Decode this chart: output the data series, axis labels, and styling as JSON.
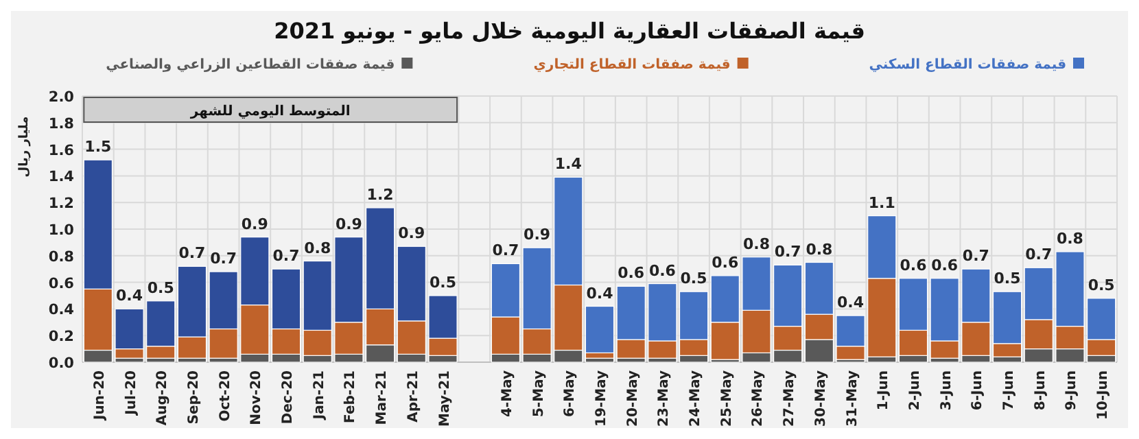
{
  "chart_data": {
    "type": "bar",
    "stacked": true,
    "title": "قيمة الصفقات العقارية اليومية خلال مايو - يونيو 2021",
    "ylabel": "مليار ريال",
    "annotations": [
      "المتوسط اليومي للشهر"
    ],
    "categories": [
      "Jun-20",
      "Jul-20",
      "Aug-20",
      "Sep-20",
      "Oct-20",
      "Nov-20",
      "Dec-20",
      "Jan-21",
      "Feb-21",
      "Mar-21",
      "Apr-21",
      "May-21",
      null,
      "4-May",
      "5-May",
      "6-May",
      "19-May",
      "20-May",
      "23-May",
      "24-May",
      "25-May",
      "26-May",
      "27-May",
      "30-May",
      "31-May",
      "1-Jun",
      "2-Jun",
      "3-Jun",
      "6-Jun",
      "7-Jun",
      "8-Jun",
      "9-Jun",
      "10-Jun"
    ],
    "series": [
      {
        "name": "قيمة صفقات القطاعين الزراعي والصناعي",
        "color": "#595959",
        "values": [
          0.09,
          0.03,
          0.03,
          0.03,
          0.03,
          0.06,
          0.06,
          0.05,
          0.06,
          0.13,
          0.06,
          0.05,
          null,
          0.06,
          0.06,
          0.09,
          0.03,
          0.03,
          0.03,
          0.05,
          0.02,
          0.07,
          0.09,
          0.17,
          0.02,
          0.04,
          0.05,
          0.03,
          0.05,
          0.04,
          0.1,
          0.1,
          0.05
        ]
      },
      {
        "name": "قيمة صفقات القطاع التجاري",
        "color": "#c0622a",
        "values": [
          0.46,
          0.07,
          0.09,
          0.16,
          0.22,
          0.37,
          0.19,
          0.19,
          0.24,
          0.27,
          0.25,
          0.13,
          null,
          0.28,
          0.19,
          0.49,
          0.04,
          0.14,
          0.13,
          0.12,
          0.28,
          0.32,
          0.18,
          0.19,
          0.1,
          0.59,
          0.19,
          0.13,
          0.25,
          0.1,
          0.22,
          0.17,
          0.12
        ]
      },
      {
        "name": "قيمة صفقات القطاع السكني",
        "color": "#4472c4",
        "colors": [
          "#2e4d9a",
          "#2e4d9a",
          "#2e4d9a",
          "#2e4d9a",
          "#2e4d9a",
          "#2e4d9a",
          "#2e4d9a",
          "#2e4d9a",
          "#2e4d9a",
          "#2e4d9a",
          "#2e4d9a",
          "#2e4d9a",
          null,
          "#4472c4",
          "#4472c4",
          "#4472c4",
          "#4472c4",
          "#4472c4",
          "#4472c4",
          "#4472c4",
          "#4472c4",
          "#4472c4",
          "#4472c4",
          "#4472c4",
          "#4472c4",
          "#4472c4",
          "#4472c4",
          "#4472c4",
          "#4472c4",
          "#4472c4",
          "#4472c4",
          "#4472c4",
          "#4472c4"
        ],
        "values": [
          0.97,
          0.3,
          0.34,
          0.53,
          0.43,
          0.51,
          0.45,
          0.52,
          0.64,
          0.76,
          0.56,
          0.32,
          null,
          0.4,
          0.61,
          0.81,
          0.35,
          0.4,
          0.43,
          0.36,
          0.35,
          0.4,
          0.46,
          0.39,
          0.23,
          0.47,
          0.39,
          0.47,
          0.4,
          0.39,
          0.39,
          0.56,
          0.31
        ]
      }
    ],
    "totals": [
      "1.5",
      "0.4",
      "0.5",
      "0.7",
      "0.7",
      "0.9",
      "0.7",
      "0.8",
      "0.9",
      "1.2",
      "0.9",
      "0.5",
      null,
      "0.7",
      "0.9",
      "1.4",
      "0.4",
      "0.6",
      "0.6",
      "0.5",
      "0.6",
      "0.8",
      "0.7",
      "0.8",
      "0.4",
      "1.1",
      "0.6",
      "0.6",
      "0.7",
      "0.5",
      "0.7",
      "0.8",
      "0.5"
    ],
    "ylim": [
      0,
      2
    ],
    "yticks": [
      {
        "value": 0,
        "label": "0.0"
      },
      {
        "value": 0.2,
        "label": "0.2"
      },
      {
        "value": 0.4,
        "label": "0.4"
      },
      {
        "value": 0.6,
        "label": "0.6"
      },
      {
        "value": 0.8,
        "label": "0.8"
      },
      {
        "value": 1,
        "label": "1.0"
      },
      {
        "value": 1.2,
        "label": "1.2"
      },
      {
        "value": 1.4,
        "label": "1.4"
      },
      {
        "value": 1.6,
        "label": "1.6"
      },
      {
        "value": 1.8,
        "label": "1.8"
      },
      {
        "value": 2,
        "label": "2.0"
      }
    ],
    "grid": true,
    "legend": "top"
  }
}
